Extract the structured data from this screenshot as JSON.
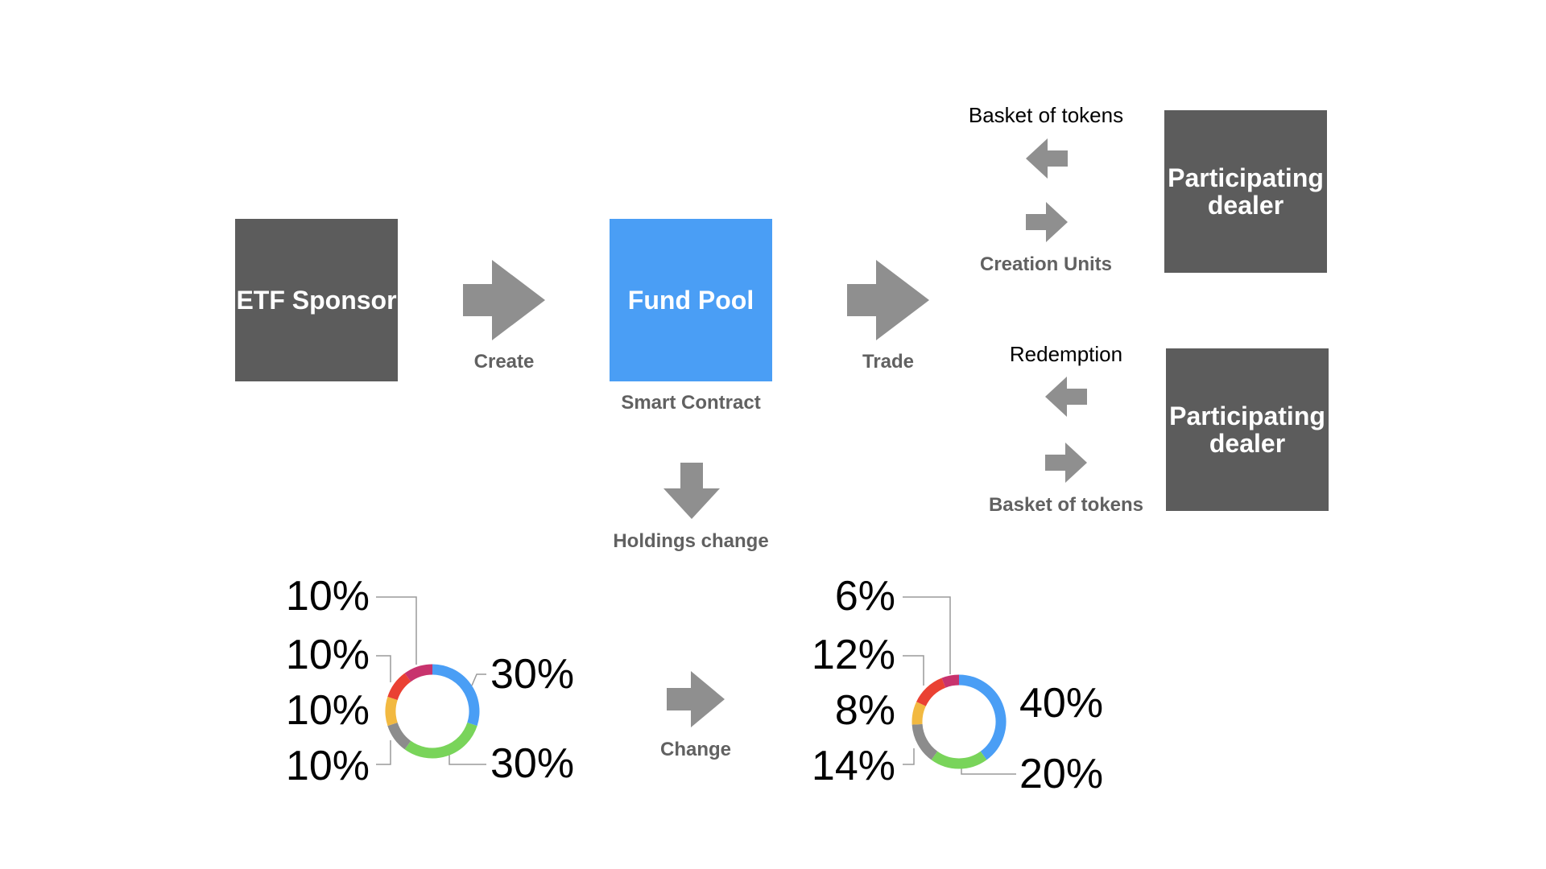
{
  "colors": {
    "dark_box": "#5c5c5c",
    "accent_box": "#4a9ef5",
    "arrow": "#8f8f8f",
    "label_gray": "#616161"
  },
  "nodes": {
    "etf_sponsor": "ETF Sponsor",
    "fund_pool": "Fund Pool",
    "dealer_top": "Participating dealer",
    "dealer_bottom": "Participating dealer"
  },
  "labels": {
    "create": "Create",
    "trade": "Trade",
    "smart_contract": "Smart Contract",
    "holdings_change": "Holdings change",
    "change": "Change",
    "basket_top": "Basket of tokens",
    "creation_units": "Creation Units",
    "redemption": "Redemption",
    "basket_bottom": "Basket of tokens"
  },
  "icons": {
    "arrow_right": "arrow-right-icon",
    "arrow_left": "arrow-left-icon",
    "arrow_down": "arrow-down-icon"
  },
  "chart_data": [
    {
      "type": "pie",
      "labels": [
        "30%",
        "30%",
        "10%",
        "10%",
        "10%",
        "10%"
      ],
      "values": [
        30,
        30,
        10,
        10,
        10,
        10
      ],
      "colors": [
        "#4a9ef5",
        "#79d45a",
        "#8c8c8c",
        "#f2b941",
        "#ea4133",
        "#c8336d"
      ]
    },
    {
      "type": "pie",
      "labels": [
        "40%",
        "20%",
        "14%",
        "8%",
        "12%",
        "6%"
      ],
      "values": [
        40,
        20,
        14,
        8,
        12,
        6
      ],
      "colors": [
        "#4a9ef5",
        "#79d45a",
        "#8c8c8c",
        "#f2b941",
        "#ea4133",
        "#c8336d"
      ]
    }
  ]
}
